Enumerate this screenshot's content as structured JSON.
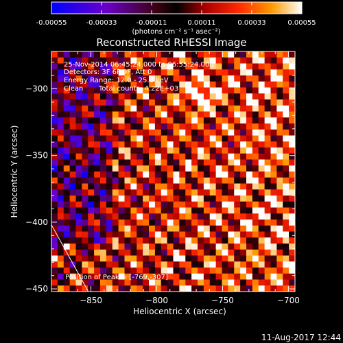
{
  "chart_data": {
    "type": "heatmap",
    "title": "Reconstructed RHESSI Image",
    "colorbar": {
      "ticks": [
        "-0.00055",
        "-0.00033",
        "-0.00011",
        "0.00011",
        "0.00033",
        "0.00055"
      ],
      "range": [
        -0.00055,
        0.00055
      ],
      "unit_label": "(photons cm⁻² s⁻¹ asec⁻²)",
      "colors": [
        "#0000ff",
        "#6a00c8",
        "#3a0010",
        "#000000",
        "#b00000",
        "#ff2a00",
        "#ff9a00",
        "#ffffff"
      ]
    },
    "xlabel": "Heliocentric X (arcsec)",
    "ylabel": "Heliocentric Y (arcsec)",
    "xlim": [
      -880,
      -695
    ],
    "ylim": [
      -452,
      -272
    ],
    "xticks": [
      -850,
      -800,
      -750,
      -700
    ],
    "yticks": [
      -300,
      -350,
      -400,
      -450
    ],
    "annotations": {
      "line1": "25-Nov-2014 06:45:24.000 to 06:55:24.000",
      "line2": "Detectors: 3F 6F 9F, Att 0",
      "line3": "Energy Range: 12.0 - 25.0 keV",
      "line4_a": "Clean",
      "line4_b": "Total counts: 4.22E+03",
      "peak": "Position of Peak = [-769,-307]"
    },
    "peak_position": [
      -769,
      -307
    ],
    "limb_line": [
      [
        -880,
        -402
      ],
      [
        -852,
        -452
      ]
    ]
  },
  "footer": {
    "timestamp": "11-Aug-2017 12:44"
  }
}
